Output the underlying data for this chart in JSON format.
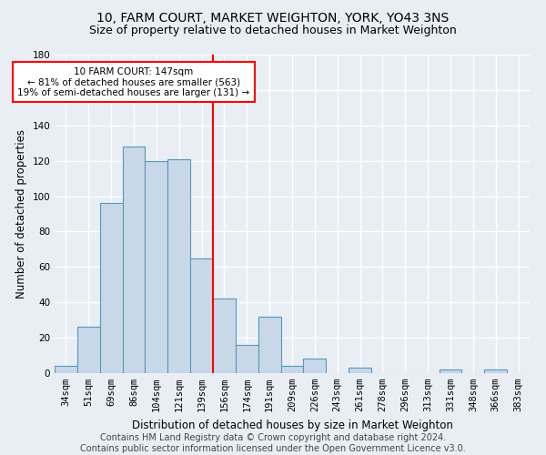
{
  "title_line1": "10, FARM COURT, MARKET WEIGHTON, YORK, YO43 3NS",
  "title_line2": "Size of property relative to detached houses in Market Weighton",
  "xlabel": "Distribution of detached houses by size in Market Weighton",
  "ylabel": "Number of detached properties",
  "footer_line1": "Contains HM Land Registry data © Crown copyright and database right 2024.",
  "footer_line2": "Contains public sector information licensed under the Open Government Licence v3.0.",
  "bar_labels": [
    "34sqm",
    "51sqm",
    "69sqm",
    "86sqm",
    "104sqm",
    "121sqm",
    "139sqm",
    "156sqm",
    "174sqm",
    "191sqm",
    "209sqm",
    "226sqm",
    "243sqm",
    "261sqm",
    "278sqm",
    "296sqm",
    "313sqm",
    "331sqm",
    "348sqm",
    "366sqm",
    "383sqm"
  ],
  "bar_values": [
    4,
    26,
    96,
    128,
    120,
    121,
    65,
    42,
    16,
    32,
    4,
    8,
    0,
    3,
    0,
    0,
    0,
    2,
    0,
    2,
    0
  ],
  "bar_color": "#c8d8e8",
  "bar_edge_color": "#5599bb",
  "vline_x": 6.5,
  "vline_color": "red",
  "annotation_text": "10 FARM COURT: 147sqm\n← 81% of detached houses are smaller (563)\n19% of semi-detached houses are larger (131) →",
  "annotation_box_color": "white",
  "annotation_box_edge": "red",
  "ylim": [
    0,
    180
  ],
  "yticks": [
    0,
    20,
    40,
    60,
    80,
    100,
    120,
    140,
    160,
    180
  ],
  "background_color": "#e8eef4",
  "grid_color": "white",
  "title_fontsize": 10,
  "subtitle_fontsize": 9,
  "axis_label_fontsize": 8.5,
  "tick_fontsize": 7.5,
  "footer_fontsize": 7,
  "annotation_fontsize": 7.5
}
